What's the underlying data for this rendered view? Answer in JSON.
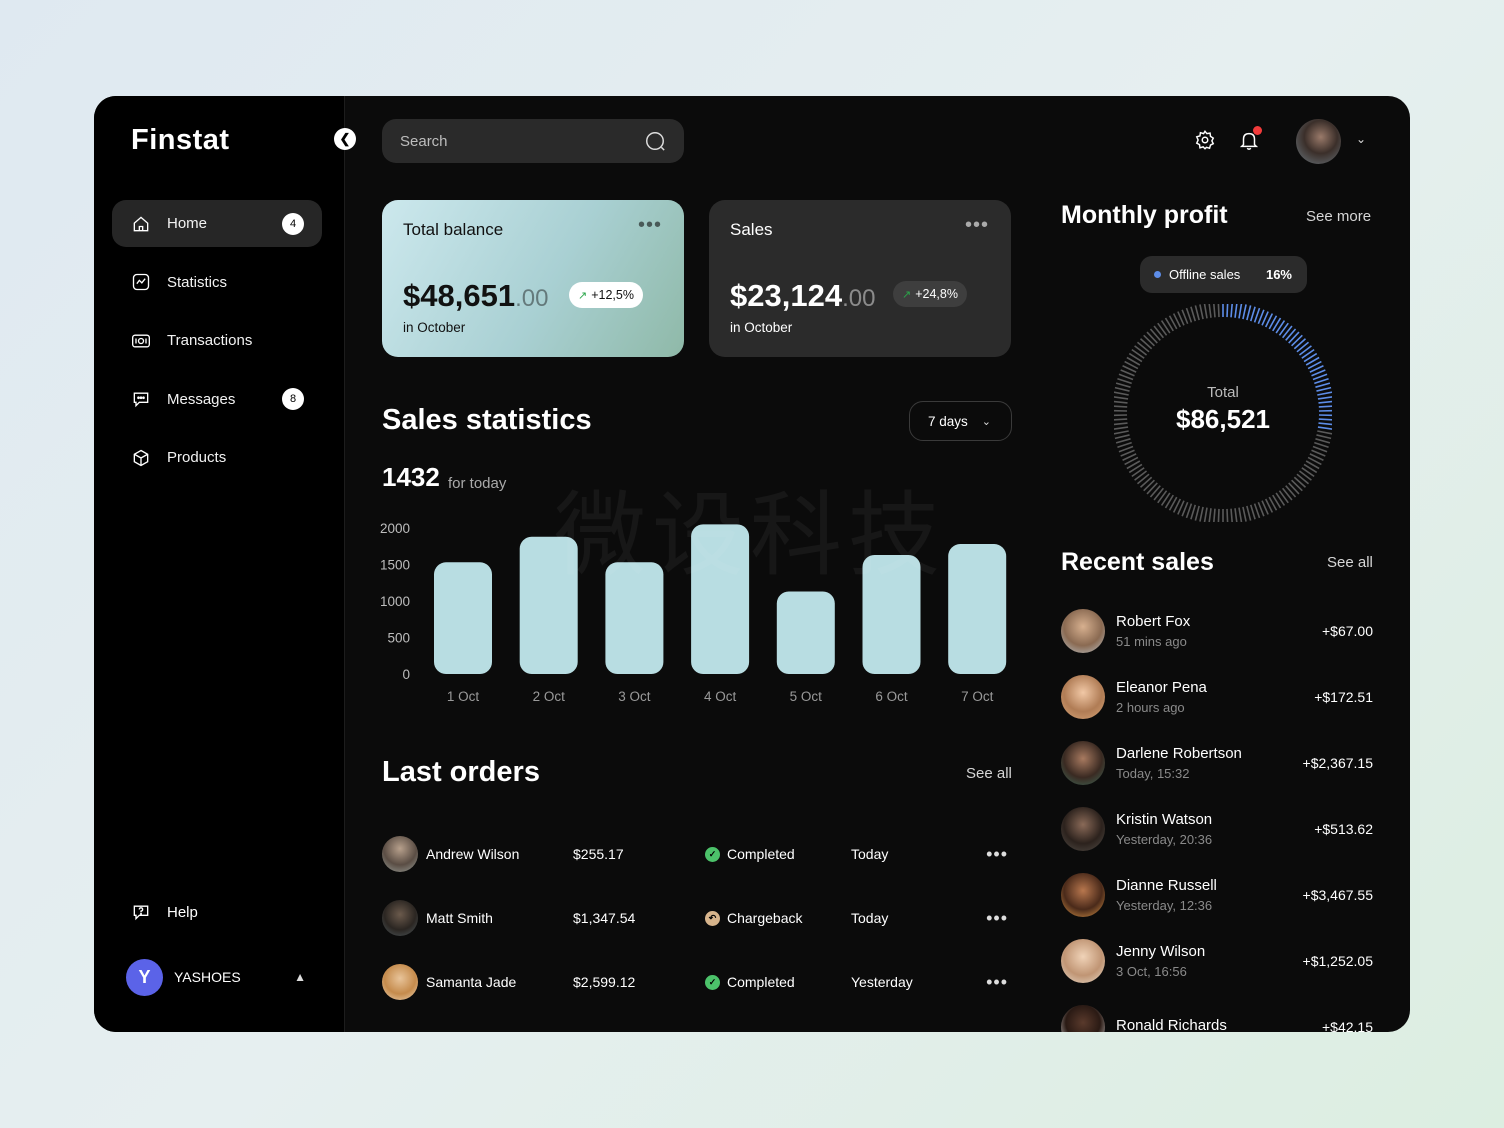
{
  "app": {
    "logo": "Finstat"
  },
  "sidebar": {
    "items": [
      {
        "label": "Home",
        "icon": "home-icon",
        "badge": "4",
        "active": true
      },
      {
        "label": "Statistics",
        "icon": "statistics-icon",
        "badge": ""
      },
      {
        "label": "Transactions",
        "icon": "transactions-icon",
        "badge": ""
      },
      {
        "label": "Messages",
        "icon": "messages-icon",
        "badge": "8"
      },
      {
        "label": "Products",
        "icon": "products-icon",
        "badge": ""
      }
    ],
    "help_label": "Help",
    "user": {
      "initial": "Y",
      "name": "YASHOES"
    }
  },
  "header": {
    "search_placeholder": "Search"
  },
  "cards": {
    "balance": {
      "title": "Total balance",
      "amount": "$48,651",
      "cents": ".00",
      "change": "+12,5%",
      "sub": "in October"
    },
    "sales": {
      "title": "Sales",
      "amount": "$23,124",
      "cents": ".00",
      "change": "+24,8%",
      "sub": "in October"
    }
  },
  "sales_statistics": {
    "title": "Sales statistics",
    "period": "7 days",
    "today_count": "1432",
    "today_label": "for today",
    "watermark": "微设科技"
  },
  "chart_data": {
    "type": "bar",
    "categories": [
      "1 Oct",
      "2 Oct",
      "3 Oct",
      "4 Oct",
      "5 Oct",
      "6 Oct",
      "7 Oct"
    ],
    "values": [
      1530,
      1880,
      1530,
      2050,
      1130,
      1630,
      1780
    ],
    "yticks": [
      "2000",
      "1500",
      "1000",
      "500",
      "0"
    ],
    "ylim": [
      0,
      2000
    ],
    "bar_color": "#b8dde2"
  },
  "last_orders": {
    "title": "Last orders",
    "see_all": "See all",
    "rows": [
      {
        "name": "Andrew Wilson",
        "amount": "$255.17",
        "status": "Completed",
        "status_color": "#4cc26a",
        "date": "Today"
      },
      {
        "name": "Matt Smith",
        "amount": "$1,347.54",
        "status": "Chargeback",
        "status_color": "#d7b48c",
        "date": "Today"
      },
      {
        "name": "Samanta Jade",
        "amount": "$2,599.12",
        "status": "Completed",
        "status_color": "#4cc26a",
        "date": "Yesterday"
      }
    ]
  },
  "monthly_profit": {
    "title": "Monthly profit",
    "see_more": "See more",
    "chip_label": "Offline sales",
    "chip_value": "16%",
    "total_label": "Total",
    "total_value": "$86,521",
    "offline_fraction": 0.16,
    "accent_color": "#5d8de8"
  },
  "recent_sales": {
    "title": "Recent sales",
    "see_all": "See all",
    "rows": [
      {
        "name": "Robert Fox",
        "time": "51 mins ago",
        "amount": "+$67.00"
      },
      {
        "name": "Eleanor Pena",
        "time": "2 hours ago",
        "amount": "+$172.51"
      },
      {
        "name": "Darlene Robertson",
        "time": "Today, 15:32",
        "amount": "+$2,367.15"
      },
      {
        "name": "Kristin Watson",
        "time": "Yesterday, 20:36",
        "amount": "+$513.62"
      },
      {
        "name": "Dianne Russell",
        "time": "Yesterday, 12:36",
        "amount": "+$3,467.55"
      },
      {
        "name": "Jenny Wilson",
        "time": "3 Oct, 16:56",
        "amount": "+$1,252.05"
      },
      {
        "name": "Ronald Richards",
        "time": "",
        "amount": "+$42.15"
      }
    ]
  }
}
